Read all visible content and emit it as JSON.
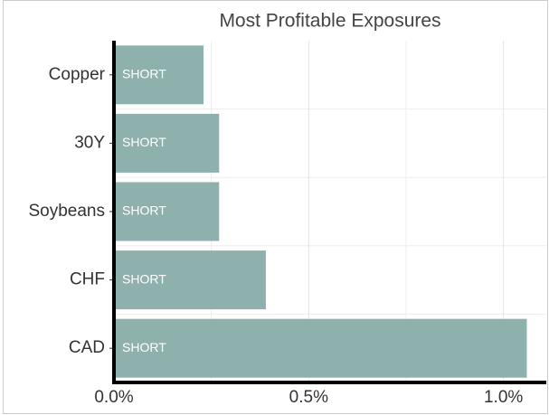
{
  "chart_data": {
    "type": "barh",
    "title": "Most Profitable Exposures",
    "categories": [
      "Copper",
      "30Y",
      "Soybeans",
      "CHF",
      "CAD"
    ],
    "values": [
      0.23,
      0.27,
      0.27,
      0.39,
      1.06
    ],
    "bar_labels": [
      "SHORT",
      "SHORT",
      "SHORT",
      "SHORT",
      "SHORT"
    ],
    "color": "#8fb1ae",
    "xlim": [
      0,
      1.11
    ],
    "xticks": [
      {
        "value": 0,
        "label": "0.0%"
      },
      {
        "value": 0.5,
        "label": "0.5%"
      },
      {
        "value": 1,
        "label": "1.0%"
      }
    ],
    "minor_xticks": [
      0.25,
      0.75
    ],
    "grid": true
  }
}
